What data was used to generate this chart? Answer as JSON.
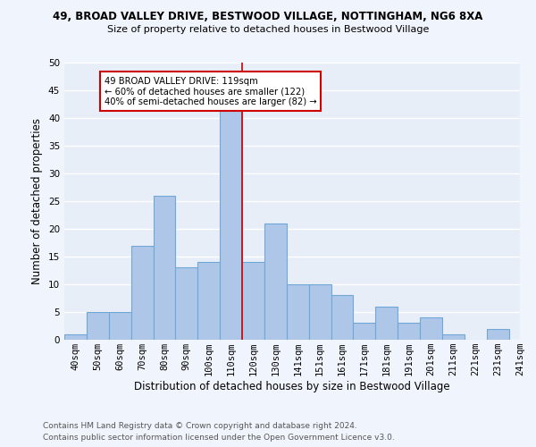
{
  "title_line1": "49, BROAD VALLEY DRIVE, BESTWOOD VILLAGE, NOTTINGHAM, NG6 8XA",
  "title_line2": "Size of property relative to detached houses in Bestwood Village",
  "xlabel": "Distribution of detached houses by size in Bestwood Village",
  "ylabel": "Number of detached properties",
  "footer_line1": "Contains HM Land Registry data © Crown copyright and database right 2024.",
  "footer_line2": "Contains public sector information licensed under the Open Government Licence v3.0.",
  "bin_labels": [
    "40sqm",
    "50sqm",
    "60sqm",
    "70sqm",
    "80sqm",
    "90sqm",
    "100sqm",
    "110sqm",
    "120sqm",
    "130sqm",
    "141sqm",
    "151sqm",
    "161sqm",
    "171sqm",
    "181sqm",
    "191sqm",
    "201sqm",
    "211sqm",
    "221sqm",
    "231sqm",
    "241sqm"
  ],
  "bar_values": [
    1,
    5,
    5,
    17,
    26,
    13,
    14,
    42,
    14,
    21,
    10,
    10,
    8,
    3,
    6,
    3,
    4,
    1,
    0,
    2
  ],
  "bar_color": "#AEC6E8",
  "bar_edgecolor": "#6FA8D6",
  "vline_x": 7.5,
  "vline_color": "#CC0000",
  "annotation_text": "49 BROAD VALLEY DRIVE: 119sqm\n← 60% of detached houses are smaller (122)\n40% of semi-detached houses are larger (82) →",
  "annotation_box_color": "#ffffff",
  "annotation_box_edgecolor": "#CC0000",
  "ylim": [
    0,
    50
  ],
  "yticks": [
    0,
    5,
    10,
    15,
    20,
    25,
    30,
    35,
    40,
    45,
    50
  ],
  "background_color": "#E8EEF8",
  "grid_color": "#ffffff",
  "title_fontsize": 8.5,
  "subtitle_fontsize": 8.0,
  "axis_label_fontsize": 8.5,
  "tick_fontsize": 7.5,
  "footer_fontsize": 6.5,
  "fig_facecolor": "#F0F4FC"
}
